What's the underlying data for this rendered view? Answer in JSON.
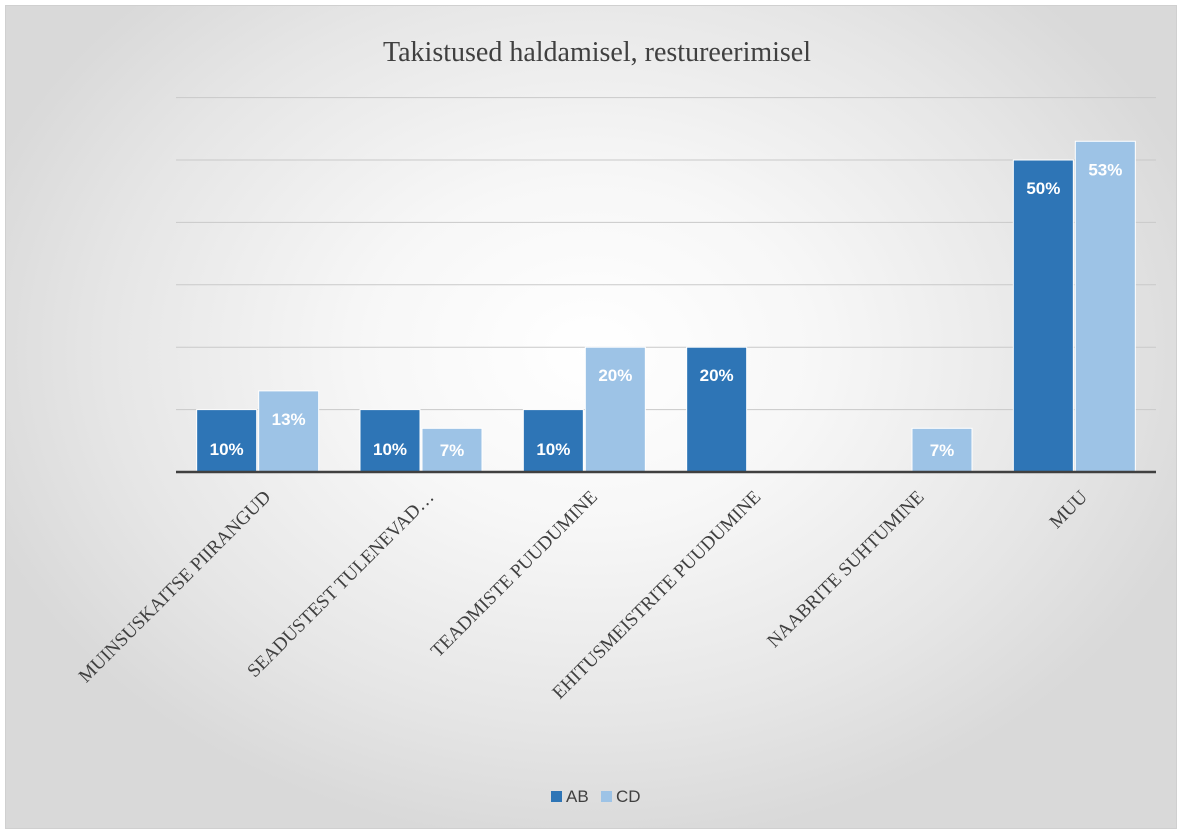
{
  "chart_data": {
    "type": "bar",
    "title": "Takistused haldamisel, restureerimisel",
    "categories": [
      "MUINSUSKAITSE PIIRANGUD",
      "SEADUSTEST TULENEVAD…",
      "TEADMISTE PUUDUMINE",
      "EHITUSMEISTRITE PUUDUMINE",
      "NAABRITE SUHTUMINE",
      "MUU"
    ],
    "series": [
      {
        "name": "AB",
        "values": [
          10,
          10,
          10,
          20,
          0,
          50
        ],
        "labels": [
          "10%",
          "10%",
          "10%",
          "20%",
          "",
          "50%"
        ]
      },
      {
        "name": "CD",
        "values": [
          13,
          7,
          20,
          0,
          7,
          53
        ],
        "labels": [
          "13%",
          "7%",
          "20%",
          "",
          "7%",
          "53%"
        ]
      }
    ],
    "colors": {
      "AB": "#2e75b6",
      "CD": "#9dc3e6"
    },
    "ylim": [
      0,
      60
    ],
    "gridlines": true,
    "y_tick_labels_shown": false,
    "legend_position": "bottom"
  }
}
